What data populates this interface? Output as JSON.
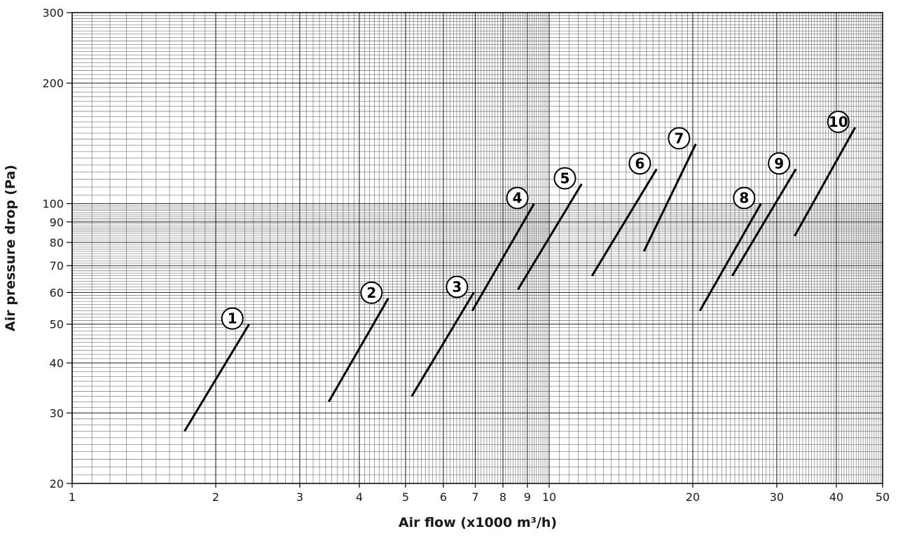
{
  "chart_data": {
    "type": "line",
    "xscale": "log",
    "yscale": "log",
    "xlabel": "Air flow (x1000 m³/h)",
    "ylabel": "Air pressure drop (Pa)",
    "xlim": [
      1,
      50
    ],
    "ylim": [
      20,
      300
    ],
    "grid": true,
    "x_ticks": [
      1,
      2,
      3,
      4,
      5,
      6,
      7,
      8,
      9,
      10,
      20,
      30,
      40,
      50
    ],
    "x_tick_labels": [
      "1",
      "2",
      "3",
      "4",
      "5",
      "6",
      "7",
      "8",
      "9",
      "10",
      "20",
      "30",
      "40",
      "50"
    ],
    "y_ticks": [
      20,
      30,
      40,
      50,
      60,
      70,
      80,
      90,
      100,
      200,
      300
    ],
    "y_tick_labels": [
      "20",
      "30",
      "40",
      "50",
      "60",
      "70",
      "80",
      "90",
      "100",
      "200",
      "300"
    ],
    "series": [
      {
        "name": "1",
        "x": [
          1.72,
          2.35
        ],
        "y": [
          27,
          50
        ]
      },
      {
        "name": "2",
        "x": [
          3.45,
          4.6
        ],
        "y": [
          32,
          58
        ]
      },
      {
        "name": "3",
        "x": [
          5.15,
          6.95
        ],
        "y": [
          33,
          60
        ]
      },
      {
        "name": "4",
        "x": [
          6.9,
          9.3
        ],
        "y": [
          54,
          100
        ]
      },
      {
        "name": "5",
        "x": [
          8.6,
          11.7
        ],
        "y": [
          61,
          112
        ]
      },
      {
        "name": "6",
        "x": [
          12.3,
          16.8
        ],
        "y": [
          66,
          122
        ]
      },
      {
        "name": "7",
        "x": [
          15.8,
          20.3
        ],
        "y": [
          76,
          141
        ]
      },
      {
        "name": "8",
        "x": [
          20.7,
          27.8
        ],
        "y": [
          54,
          100
        ]
      },
      {
        "name": "9",
        "x": [
          24.2,
          32.9
        ],
        "y": [
          66,
          122
        ]
      },
      {
        "name": "10",
        "x": [
          32.7,
          43.8
        ],
        "y": [
          83,
          155
        ]
      }
    ]
  }
}
